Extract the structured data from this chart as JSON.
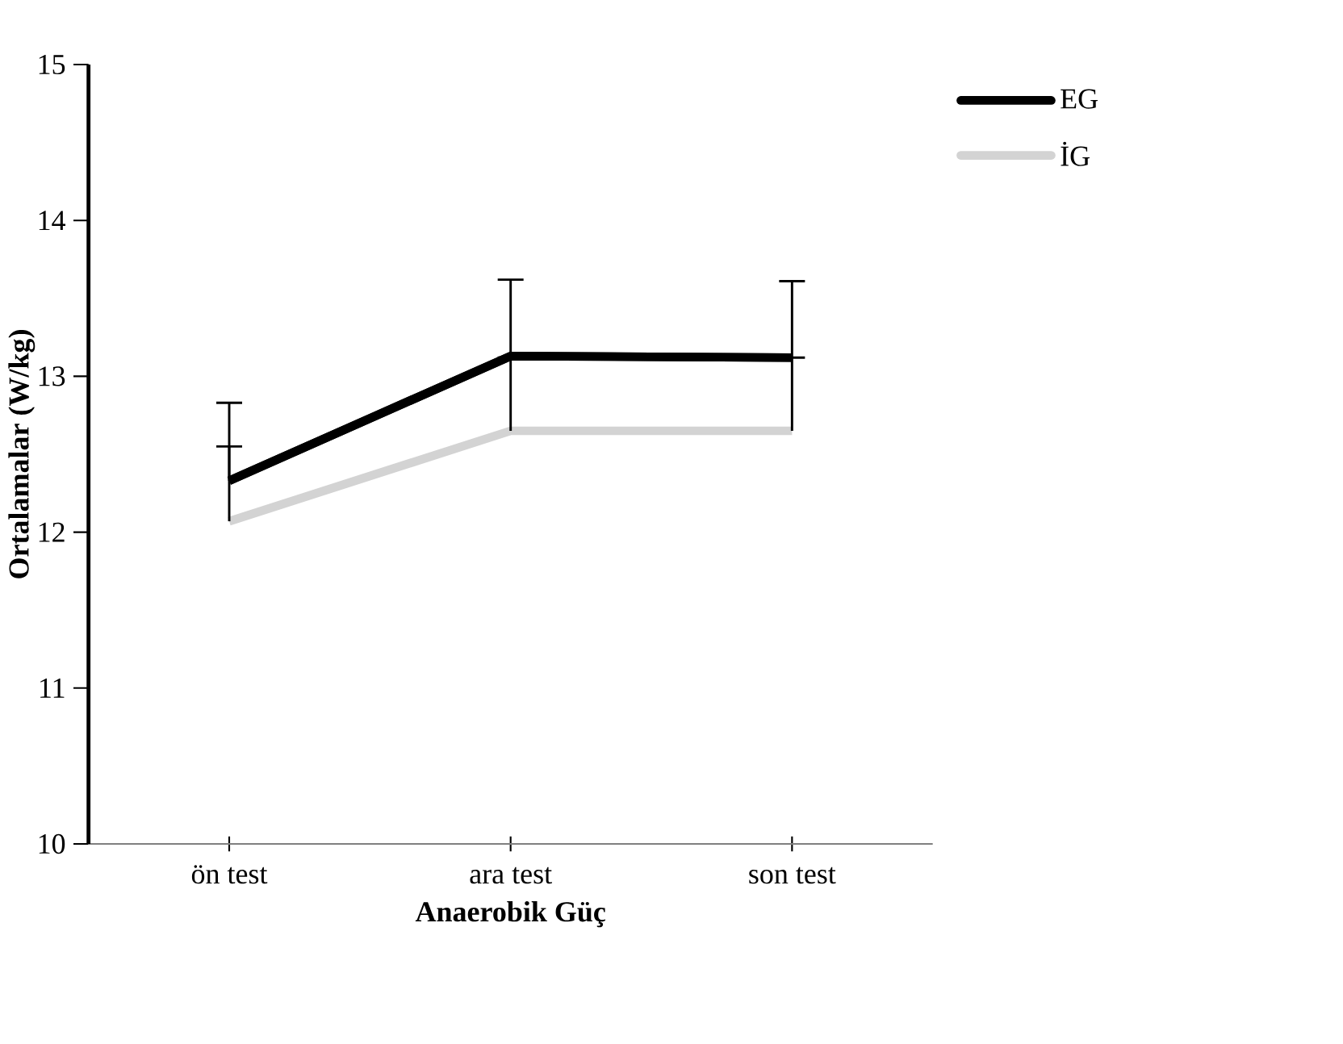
{
  "chart_data": {
    "type": "line",
    "xlabel": "Anaerobik Güç",
    "ylabel": "Ortalamalar (W/kg)",
    "categories": [
      "ön test",
      "ara test",
      "son test"
    ],
    "series": [
      {
        "name": "EG",
        "color": "#000000",
        "values": [
          12.33,
          13.13,
          13.12
        ],
        "errors": [
          [
            12.33,
            12.83
          ],
          [
            13.13,
            13.62
          ],
          [
            13.12,
            13.61
          ]
        ]
      },
      {
        "name": "İG",
        "color": "#d3d3d3",
        "values": [
          12.07,
          12.65,
          12.65
        ],
        "errors": [
          [
            12.07,
            12.55
          ],
          [
            12.65,
            13.12
          ],
          [
            12.65,
            13.12
          ]
        ]
      }
    ],
    "ylim": [
      10,
      15
    ],
    "yticks": [
      10,
      11,
      12,
      13,
      14,
      15
    ],
    "legend": "top right",
    "marker": "none",
    "line_style": "solid",
    "grid": false
  }
}
